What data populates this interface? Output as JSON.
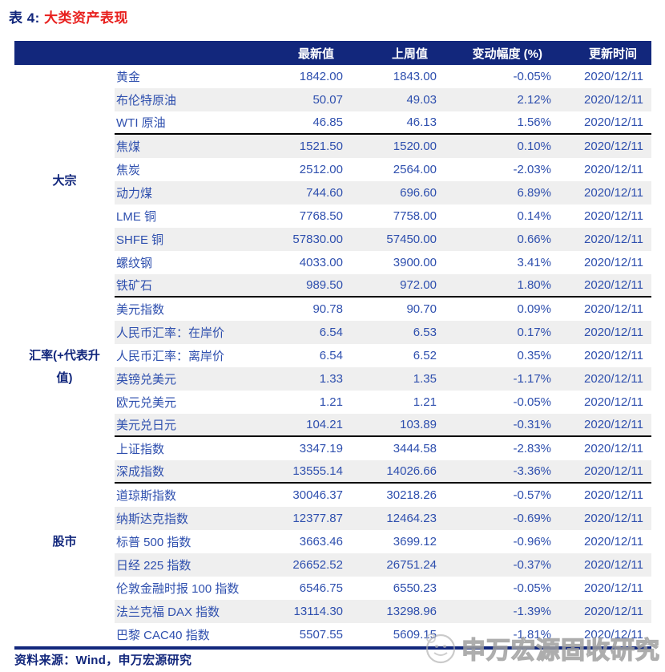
{
  "title": {
    "prefix": "表 4: ",
    "name": "大类资产表现"
  },
  "header": {
    "columns": [
      "最新值",
      "上周值",
      "变动幅度 (%)",
      "更新时间"
    ]
  },
  "groups": [
    {
      "label": "大宗",
      "rows": [
        {
          "name": "黄金",
          "latest": "1842.00",
          "prev": "1843.00",
          "change": "-0.05%",
          "date": "2020/12/11"
        },
        {
          "name": "布伦特原油",
          "latest": "50.07",
          "prev": "49.03",
          "change": "2.12%",
          "date": "2020/12/11"
        },
        {
          "name": "WTI 原油",
          "latest": "46.85",
          "prev": "46.13",
          "change": "1.56%",
          "date": "2020/12/11",
          "divider": true
        },
        {
          "name": "焦煤",
          "latest": "1521.50",
          "prev": "1520.00",
          "change": "0.10%",
          "date": "2020/12/11"
        },
        {
          "name": "焦炭",
          "latest": "2512.00",
          "prev": "2564.00",
          "change": "-2.03%",
          "date": "2020/12/11"
        },
        {
          "name": "动力煤",
          "latest": "744.60",
          "prev": "696.60",
          "change": "6.89%",
          "date": "2020/12/11"
        },
        {
          "name": "LME 铜",
          "latest": "7768.50",
          "prev": "7758.00",
          "change": "0.14%",
          "date": "2020/12/11"
        },
        {
          "name": "SHFE 铜",
          "latest": "57830.00",
          "prev": "57450.00",
          "change": "0.66%",
          "date": "2020/12/11"
        },
        {
          "name": "螺纹钢",
          "latest": "4033.00",
          "prev": "3900.00",
          "change": "3.41%",
          "date": "2020/12/11"
        },
        {
          "name": "铁矿石",
          "latest": "989.50",
          "prev": "972.00",
          "change": "1.80%",
          "date": "2020/12/11",
          "divider": true
        }
      ]
    },
    {
      "label": "汇率(+代表升值)",
      "rows": [
        {
          "name": "美元指数",
          "latest": "90.78",
          "prev": "90.70",
          "change": "0.09%",
          "date": "2020/12/11"
        },
        {
          "name": "人民币汇率：在岸价",
          "latest": "6.54",
          "prev": "6.53",
          "change": "0.17%",
          "date": "2020/12/11"
        },
        {
          "name": "人民币汇率：离岸价",
          "latest": "6.54",
          "prev": "6.52",
          "change": "0.35%",
          "date": "2020/12/11"
        },
        {
          "name": "英镑兑美元",
          "latest": "1.33",
          "prev": "1.35",
          "change": "-1.17%",
          "date": "2020/12/11"
        },
        {
          "name": "欧元兑美元",
          "latest": "1.21",
          "prev": "1.21",
          "change": "-0.05%",
          "date": "2020/12/11"
        },
        {
          "name": "美元兑日元",
          "latest": "104.21",
          "prev": "103.89",
          "change": "-0.31%",
          "date": "2020/12/11",
          "divider": true
        }
      ]
    },
    {
      "label": "股市",
      "rows": [
        {
          "name": "上证指数",
          "latest": "3347.19",
          "prev": "3444.58",
          "change": "-2.83%",
          "date": "2020/12/11"
        },
        {
          "name": "深成指数",
          "latest": "13555.14",
          "prev": "14026.66",
          "change": "-3.36%",
          "date": "2020/12/11",
          "divider": true
        },
        {
          "name": "道琼斯指数",
          "latest": "30046.37",
          "prev": "30218.26",
          "change": "-0.57%",
          "date": "2020/12/11"
        },
        {
          "name": "纳斯达克指数",
          "latest": "12377.87",
          "prev": "12464.23",
          "change": "-0.69%",
          "date": "2020/12/11"
        },
        {
          "name": "标普 500 指数",
          "latest": "3663.46",
          "prev": "3699.12",
          "change": "-0.96%",
          "date": "2020/12/11"
        },
        {
          "name": "日经 225 指数",
          "latest": "26652.52",
          "prev": "26751.24",
          "change": "-0.37%",
          "date": "2020/12/11"
        },
        {
          "name": "伦敦金融时报 100 指数",
          "latest": "6546.75",
          "prev": "6550.23",
          "change": "-0.05%",
          "date": "2020/12/11"
        },
        {
          "name": "法兰克福 DAX 指数",
          "latest": "13114.30",
          "prev": "13298.96",
          "change": "-1.39%",
          "date": "2020/12/11"
        },
        {
          "name": "巴黎 CAC40 指数",
          "latest": "5507.55",
          "prev": "5609.15",
          "change": "-1.81%",
          "date": "2020/12/11"
        }
      ]
    }
  ],
  "footer": {
    "source": "资料来源：Wind，申万宏源研究"
  },
  "watermark": {
    "text": "申万宏源固收研究",
    "logo": "wechat-account-logo-icon"
  },
  "colors": {
    "navy": "#12277C",
    "red": "#E8201E",
    "cell_blue": "#2E4FAE",
    "stripe_gray": "#EFEFEF",
    "divider_black": "#000000"
  }
}
